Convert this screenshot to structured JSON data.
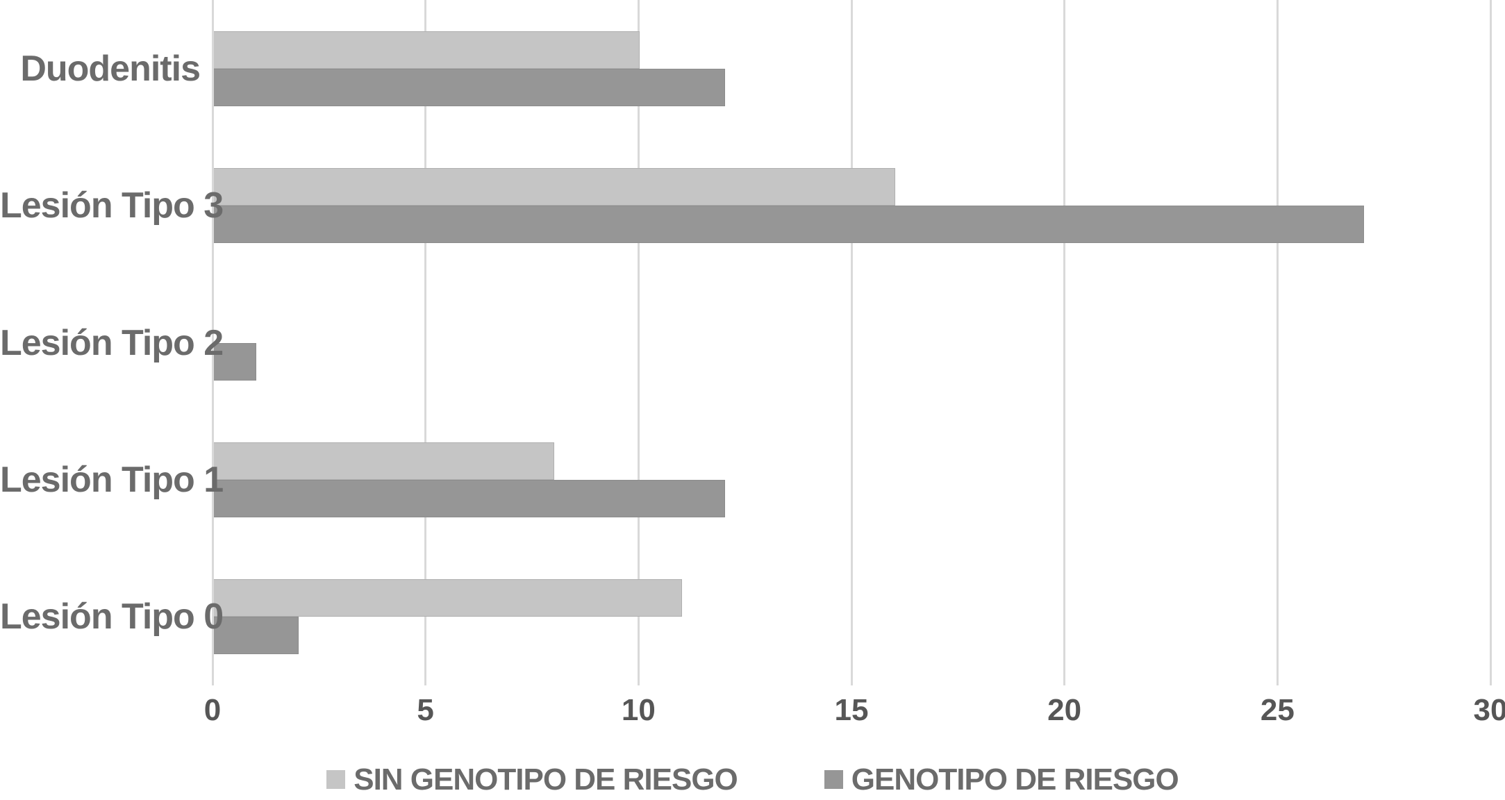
{
  "chart_data": {
    "type": "bar",
    "orientation": "horizontal",
    "title": "",
    "xlabel": "",
    "ylabel": "",
    "categories": [
      "Duodenitis",
      "Lesión Tipo 3",
      "Lesión Tipo 2",
      "Lesión Tipo 1",
      "Lesión Tipo 0"
    ],
    "series": [
      {
        "name": "SIN GENOTIPO DE RIESGO",
        "color": "#c5c5c5",
        "values": [
          10,
          16,
          0,
          8,
          11
        ]
      },
      {
        "name": "GENOTIPO DE RIESGO",
        "color": "#969696",
        "values": [
          12,
          27,
          1,
          12,
          2
        ]
      }
    ],
    "xlim": [
      0,
      30
    ],
    "xticks": [
      0,
      5,
      10,
      15,
      20,
      25,
      30
    ],
    "grid": true,
    "legend_position": "bottom"
  },
  "colors": {
    "gridline": "#d9d9d9",
    "tick_label": "#565656",
    "category_label": "#6b6b6b",
    "legend_label": "#6b6b6b",
    "background": "#ffffff"
  }
}
